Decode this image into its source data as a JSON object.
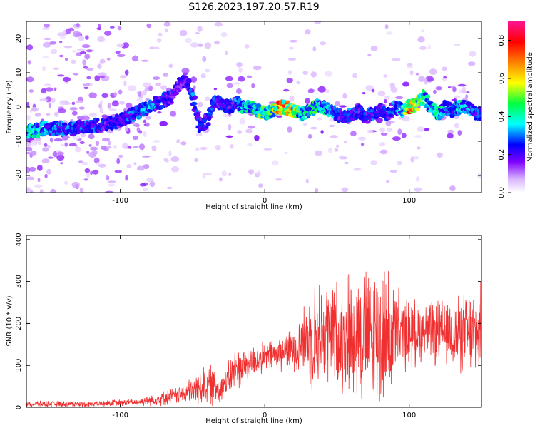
{
  "chart_data": [
    {
      "type": "heatmap",
      "title": "S126.2023.197.20.57.R19",
      "xlabel": "Height of straight line (km)",
      "ylabel": "Frequency (Hz)",
      "xlim": [
        -165,
        150
      ],
      "ylim": [
        -25,
        25
      ],
      "xticks": [
        -100,
        0,
        100
      ],
      "yticks": [
        -20,
        -10,
        0,
        10,
        20
      ],
      "grid": false,
      "colorbar": {
        "label": "Normalized spectral amplitude",
        "range": [
          0.0,
          0.9
        ],
        "ticks": [
          "0.0",
          "0.2",
          "0.4",
          "0.6",
          "0.8"
        ],
        "colors": [
          "#ffffff",
          "#d9b3ff",
          "#7f00ff",
          "#0000ff",
          "#00ffff",
          "#00ff40",
          "#ffff00",
          "#ff8000",
          "#ff0000",
          "#ff1493"
        ]
      },
      "ridge": [
        {
          "x": -160,
          "y": -7,
          "a": 0.45
        },
        {
          "x": -150,
          "y": -6,
          "a": 0.4
        },
        {
          "x": -140,
          "y": -6.5,
          "a": 0.35
        },
        {
          "x": -130,
          "y": -6,
          "a": 0.35
        },
        {
          "x": -120,
          "y": -5.5,
          "a": 0.35
        },
        {
          "x": -110,
          "y": -5,
          "a": 0.3
        },
        {
          "x": -100,
          "y": -4,
          "a": 0.3
        },
        {
          "x": -90,
          "y": -2,
          "a": 0.35
        },
        {
          "x": -80,
          "y": 0,
          "a": 0.4
        },
        {
          "x": -75,
          "y": 1,
          "a": 0.35
        },
        {
          "x": -70,
          "y": 2,
          "a": 0.3
        },
        {
          "x": -65,
          "y": 3,
          "a": 0.3
        },
        {
          "x": -60,
          "y": 6,
          "a": 0.3
        },
        {
          "x": -55,
          "y": 8,
          "a": 0.25
        },
        {
          "x": -50,
          "y": 4,
          "a": 0.35
        },
        {
          "x": -45,
          "y": -6,
          "a": 0.3
        },
        {
          "x": -40,
          "y": -4,
          "a": 0.3
        },
        {
          "x": -35,
          "y": 2,
          "a": 0.35
        },
        {
          "x": -30,
          "y": 1,
          "a": 0.3
        },
        {
          "x": -25,
          "y": 0,
          "a": 0.3
        },
        {
          "x": -20,
          "y": 1,
          "a": 0.35
        },
        {
          "x": -15,
          "y": 0,
          "a": 0.45
        },
        {
          "x": -10,
          "y": 0,
          "a": 0.5
        },
        {
          "x": -5,
          "y": -1,
          "a": 0.5
        },
        {
          "x": 0,
          "y": -2,
          "a": 0.55
        },
        {
          "x": 5,
          "y": -1,
          "a": 0.5
        },
        {
          "x": 10,
          "y": 0,
          "a": 0.75
        },
        {
          "x": 15,
          "y": 0,
          "a": 0.7
        },
        {
          "x": 20,
          "y": -1,
          "a": 0.6
        },
        {
          "x": 25,
          "y": -2,
          "a": 0.5
        },
        {
          "x": 30,
          "y": -1,
          "a": 0.45
        },
        {
          "x": 35,
          "y": 0,
          "a": 0.5
        },
        {
          "x": 40,
          "y": 0,
          "a": 0.45
        },
        {
          "x": 45,
          "y": -1,
          "a": 0.4
        },
        {
          "x": 50,
          "y": -2,
          "a": 0.35
        },
        {
          "x": 55,
          "y": -3,
          "a": 0.3
        },
        {
          "x": 60,
          "y": -2,
          "a": 0.35
        },
        {
          "x": 65,
          "y": -1,
          "a": 0.3
        },
        {
          "x": 70,
          "y": -3,
          "a": 0.3
        },
        {
          "x": 75,
          "y": -2,
          "a": 0.35
        },
        {
          "x": 80,
          "y": -1,
          "a": 0.3
        },
        {
          "x": 85,
          "y": -2,
          "a": 0.3
        },
        {
          "x": 90,
          "y": 0,
          "a": 0.35
        },
        {
          "x": 95,
          "y": -1,
          "a": 0.4
        },
        {
          "x": 100,
          "y": 0,
          "a": 0.75
        },
        {
          "x": 105,
          "y": 1,
          "a": 0.6
        },
        {
          "x": 110,
          "y": 3,
          "a": 0.5
        },
        {
          "x": 115,
          "y": 0,
          "a": 0.4
        },
        {
          "x": 120,
          "y": -2,
          "a": 0.45
        },
        {
          "x": 125,
          "y": 0,
          "a": 0.4
        },
        {
          "x": 130,
          "y": -1,
          "a": 0.35
        },
        {
          "x": 135,
          "y": 0,
          "a": 0.45
        },
        {
          "x": 140,
          "y": 0,
          "a": 0.4
        },
        {
          "x": 145,
          "y": -2,
          "a": 0.35
        }
      ]
    },
    {
      "type": "line",
      "xlabel": "Height of straight line (km)",
      "ylabel": "SNR (10 * v/v)",
      "xlim": [
        -165,
        150
      ],
      "ylim": [
        0,
        410
      ],
      "xticks": [
        -100,
        0,
        100
      ],
      "yticks": [
        0,
        100,
        200,
        300,
        400
      ],
      "grid": false,
      "color": "#f03030",
      "envelope": [
        {
          "x": -165,
          "mean": 8,
          "spread": 8
        },
        {
          "x": -120,
          "mean": 8,
          "spread": 8
        },
        {
          "x": -90,
          "mean": 12,
          "spread": 10
        },
        {
          "x": -70,
          "mean": 22,
          "spread": 20
        },
        {
          "x": -55,
          "mean": 32,
          "spread": 28
        },
        {
          "x": -40,
          "mean": 55,
          "spread": 60
        },
        {
          "x": -30,
          "mean": 45,
          "spread": 45
        },
        {
          "x": -20,
          "mean": 90,
          "spread": 60
        },
        {
          "x": 0,
          "mean": 120,
          "spread": 40
        },
        {
          "x": 20,
          "mean": 140,
          "spread": 60
        },
        {
          "x": 35,
          "mean": 170,
          "spread": 150
        },
        {
          "x": 50,
          "mean": 175,
          "spread": 150
        },
        {
          "x": 65,
          "mean": 180,
          "spread": 190
        },
        {
          "x": 80,
          "mean": 170,
          "spread": 210
        },
        {
          "x": 95,
          "mean": 175,
          "spread": 110
        },
        {
          "x": 110,
          "mean": 180,
          "spread": 80
        },
        {
          "x": 130,
          "mean": 175,
          "spread": 100
        },
        {
          "x": 150,
          "mean": 175,
          "spread": 130
        }
      ]
    }
  ]
}
